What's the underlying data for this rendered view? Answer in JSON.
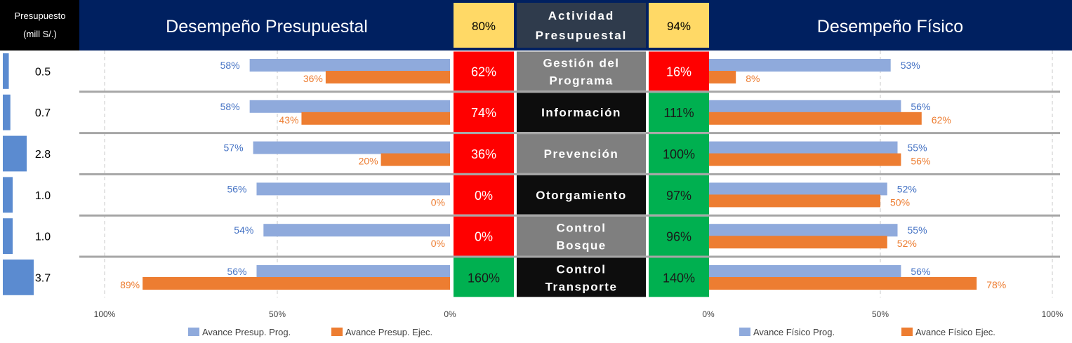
{
  "header": {
    "budget_label_line1": "Presupuesto",
    "budget_label_line2": "(mill S/.)",
    "left_title": "Desempeño Presupuestal",
    "right_title": "Desempeño Físico",
    "center_line1": "Actividad",
    "center_line2": "Presupuestal",
    "left_total": "80%",
    "right_total": "94%"
  },
  "colors": {
    "navy": "#002060",
    "header_center": "#2f3b4c",
    "yellow": "#ffd966",
    "red": "#ff0000",
    "green": "#00b050",
    "gray_activity": "#7f7f7f",
    "black_activity": "#0d0d0d",
    "bar_prog": "#8faadc",
    "bar_ejec": "#ed7d31",
    "budget_bar": "#5b8bd0",
    "label_prog": "#4472c4",
    "label_ejec": "#ed7d31"
  },
  "legend": {
    "left_prog": "Avance Presup. Prog.",
    "left_ejec": "Avance Presup. Ejec.",
    "right_prog": "Avance Físico Prog.",
    "right_ejec": "Avance Físico Ejec."
  },
  "chart_data": [
    {
      "type": "table",
      "columns": [
        "Presupuesto (mill S/.)",
        "Desempeño Presupuestal",
        "Actividad Presupuestal",
        "Desempeño Físico"
      ],
      "rows": [
        {
          "activity_lines": [
            "Gestión del",
            "Programa"
          ],
          "budget": "0.5",
          "budget_value": 0.5,
          "presup_pct": "62%",
          "presup_status": "red",
          "fisico_pct": "16%",
          "fisico_status": "red",
          "activity_style": "gray"
        },
        {
          "activity_lines": [
            "Información"
          ],
          "budget": "0.7",
          "budget_value": 0.7,
          "presup_pct": "74%",
          "presup_status": "red",
          "fisico_pct": "111%",
          "fisico_status": "green",
          "activity_style": "black"
        },
        {
          "activity_lines": [
            "Prevención"
          ],
          "budget": "2.8",
          "budget_value": 2.8,
          "presup_pct": "36%",
          "presup_status": "red",
          "fisico_pct": "100%",
          "fisico_status": "green",
          "activity_style": "gray"
        },
        {
          "activity_lines": [
            "Otorgamiento"
          ],
          "budget": "1.0",
          "budget_value": 1.0,
          "presup_pct": "0%",
          "presup_status": "red",
          "fisico_pct": "97%",
          "fisico_status": "green",
          "activity_style": "black"
        },
        {
          "activity_lines": [
            "Control",
            "Bosque"
          ],
          "budget": "1.0",
          "budget_value": 1.0,
          "presup_pct": "0%",
          "presup_status": "red",
          "fisico_pct": "96%",
          "fisico_status": "green",
          "activity_style": "gray"
        },
        {
          "activity_lines": [
            "Control",
            "Transporte"
          ],
          "budget": "3.7",
          "budget_value": 3.7,
          "presup_pct": "160%",
          "presup_status": "green",
          "fisico_pct": "140%",
          "fisico_status": "green",
          "activity_style": "black"
        }
      ]
    },
    {
      "type": "bar",
      "orientation": "horizontal",
      "direction": "right-to-left",
      "xlim": [
        0,
        100
      ],
      "x_ticks": [
        "100%",
        "50%",
        "0%"
      ],
      "categories": [
        "Gestión del Programa",
        "Información",
        "Prevención",
        "Otorgamiento",
        "Control Bosque",
        "Control Transporte"
      ],
      "series": [
        {
          "name": "Avance Presup. Prog.",
          "values": [
            58,
            58,
            57,
            56,
            54,
            56
          ],
          "labels": [
            "58%",
            "58%",
            "57%",
            "56%",
            "54%",
            "56%"
          ]
        },
        {
          "name": "Avance Presup. Ejec.",
          "values": [
            36,
            43,
            20,
            0,
            0,
            89
          ],
          "labels": [
            "36%",
            "43%",
            "20%",
            "0%",
            "0%",
            "89%"
          ]
        }
      ],
      "legend": "bottom"
    },
    {
      "type": "bar",
      "orientation": "horizontal",
      "direction": "left-to-right",
      "xlim": [
        0,
        100
      ],
      "x_ticks": [
        "0%",
        "50%",
        "100%"
      ],
      "categories": [
        "Gestión del Programa",
        "Información",
        "Prevención",
        "Otorgamiento",
        "Control Bosque",
        "Control Transporte"
      ],
      "series": [
        {
          "name": "Avance Físico Prog.",
          "values": [
            53,
            56,
            55,
            52,
            55,
            56
          ],
          "labels": [
            "53%",
            "56%",
            "55%",
            "52%",
            "55%",
            "56%"
          ]
        },
        {
          "name": "Avance Físico Ejec.",
          "values": [
            8,
            62,
            56,
            50,
            52,
            78
          ],
          "labels": [
            "8%",
            "62%",
            "56%",
            "50%",
            "52%",
            "78%"
          ]
        }
      ],
      "legend": "bottom"
    }
  ]
}
